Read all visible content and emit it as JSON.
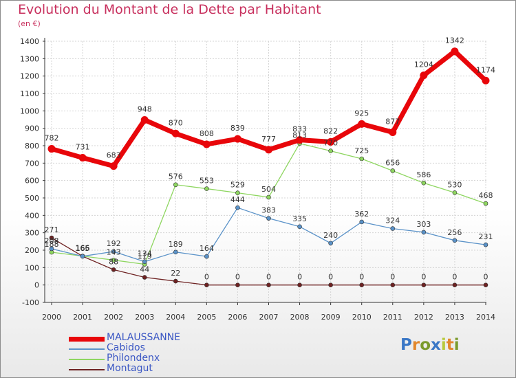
{
  "title": "Evolution du Montant de la Dette par Habitant",
  "unit": "(en €)",
  "logo": {
    "text": "Proxiti",
    "letter_colors": [
      "#3a77c6",
      "#e2872c",
      "#7a9a2c",
      "#3a77c6",
      "#b8c93c",
      "#e2872c",
      "#7a9a2c"
    ]
  },
  "chart_data": {
    "type": "line",
    "title": "Evolution du Montant de la Dette par Habitant",
    "ylabel": "(en €)",
    "xlabel": "",
    "x": [
      "2000",
      "2001",
      "2002",
      "2003",
      "2004",
      "2005",
      "2006",
      "2007",
      "2008",
      "2009",
      "2010",
      "2011",
      "2012",
      "2013",
      "2014"
    ],
    "ylim": [
      -100,
      1400
    ],
    "yticks": [
      -100,
      0,
      100,
      200,
      300,
      400,
      500,
      600,
      700,
      800,
      900,
      1000,
      1100,
      1200,
      1300,
      1400
    ],
    "grid": true,
    "legend_position": "bottom-left",
    "series": [
      {
        "name": "MALAUSSANNE",
        "color": "#e8060a",
        "values": [
          782,
          731,
          683,
          948,
          870,
          808,
          839,
          777,
          833,
          822,
          925,
          877,
          1204,
          1342,
          1174
        ]
      },
      {
        "name": "Cabidos",
        "color": "#5a92c8",
        "values": [
          208,
          165,
          192,
          134,
          189,
          164,
          444,
          383,
          335,
          240,
          362,
          324,
          303,
          256,
          231
        ]
      },
      {
        "name": "Philondenx",
        "color": "#8ed660",
        "values": [
          188,
          166,
          143,
          119,
          576,
          553,
          529,
          504,
          813,
          770,
          725,
          656,
          586,
          530,
          468
        ]
      },
      {
        "name": "Montagut",
        "color": "#6e2222",
        "values": [
          271,
          165,
          88,
          44,
          22,
          0,
          0,
          0,
          0,
          0,
          0,
          0,
          0,
          0,
          0
        ]
      }
    ],
    "data_labels": [
      [
        "782",
        "731",
        "683",
        "948",
        "870",
        "808",
        "839",
        "777",
        "833",
        "822",
        "925",
        "877",
        "1204",
        "1342",
        "1174"
      ],
      [
        "208",
        "165",
        "192",
        "134",
        "189",
        "164",
        "444",
        "383",
        "335",
        "240",
        "362",
        "324",
        "303",
        "256",
        "231"
      ],
      [
        "188",
        "166",
        "143",
        "119",
        "576",
        "553",
        "529",
        "504",
        "813",
        "770",
        "725",
        "656",
        "586",
        "530",
        "468"
      ],
      [
        "271",
        "165",
        "88",
        "44",
        "22",
        "0",
        "0",
        "0",
        "0",
        "0",
        "0",
        "0",
        "0",
        "0",
        "0"
      ]
    ]
  }
}
